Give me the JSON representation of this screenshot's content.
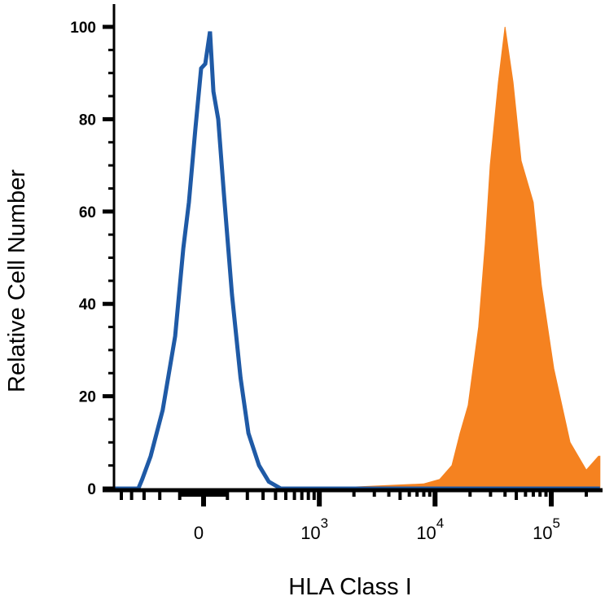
{
  "chart_data": {
    "type": "area",
    "title": "",
    "xlabel": "HLA Class I",
    "ylabel": "Relative Cell Number",
    "x_scale": "biexponential",
    "xlim": [
      -575,
      262000
    ],
    "ylim": [
      0,
      100
    ],
    "grid": false,
    "yticks": [
      0,
      20,
      40,
      60,
      80,
      100
    ],
    "ytick_labels": [
      "0",
      "20",
      "40",
      "60",
      "80",
      "100"
    ],
    "xticks": [
      {
        "value": 0,
        "base": "0",
        "exp": ""
      },
      {
        "value": 1000,
        "base": "10",
        "exp": "3"
      },
      {
        "value": 10000,
        "base": "10",
        "exp": "4"
      },
      {
        "value": 100000,
        "base": "10",
        "exp": "5"
      }
    ],
    "series": [
      {
        "style": "outline",
        "color": "#1f5aa6",
        "x": [
          -575,
          -343,
          -314,
          -255,
          -184,
          -121,
          -84,
          -60,
          -33,
          -10,
          7,
          26,
          40,
          60,
          84,
          121,
          163,
          206,
          272,
          343,
          449,
          1000,
          10000,
          100000,
          262000
        ],
        "y": [
          0,
          0,
          2,
          7,
          17,
          33,
          52,
          62,
          78,
          91,
          92,
          99,
          86,
          80,
          64,
          42,
          24,
          12,
          5,
          1.5,
          0,
          0,
          0,
          0,
          0
        ]
      },
      {
        "style": "filled",
        "color": "#f58220",
        "x": [
          -575,
          1000,
          7940,
          10960,
          13970,
          16400,
          19260,
          23700,
          27000,
          29800,
          35000,
          40000,
          46900,
          55000,
          70000,
          82200,
          105000,
          145000,
          200000,
          255000,
          262000
        ],
        "y": [
          0,
          0,
          1,
          2,
          5,
          12,
          18,
          35,
          53,
          70,
          88,
          100,
          88,
          71,
          62,
          44,
          26,
          10,
          4,
          7,
          7
        ]
      }
    ]
  }
}
